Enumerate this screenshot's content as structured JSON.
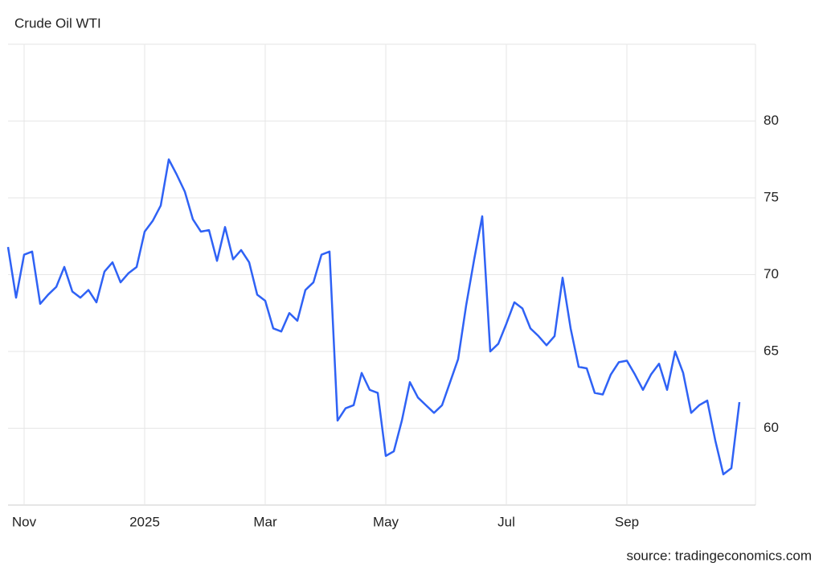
{
  "chart_data": {
    "type": "line",
    "title": "Crude Oil WTI",
    "source": "source: tradingeconomics.com",
    "categories": [
      null,
      null,
      "Nov",
      null,
      null,
      null,
      null,
      null,
      null,
      null,
      null,
      null,
      null,
      null,
      null,
      null,
      null,
      "2025",
      null,
      null,
      null,
      null,
      null,
      null,
      null,
      null,
      null,
      null,
      null,
      null,
      null,
      null,
      "Mar",
      null,
      null,
      null,
      null,
      null,
      null,
      null,
      null,
      null,
      null,
      null,
      null,
      null,
      null,
      "May",
      null,
      null,
      null,
      null,
      null,
      null,
      null,
      null,
      null,
      null,
      null,
      null,
      null,
      null,
      "Jul",
      null,
      null,
      null,
      null,
      null,
      null,
      null,
      null,
      null,
      null,
      null,
      null,
      null,
      null,
      "Sep",
      null,
      null,
      null,
      null,
      null,
      null,
      null,
      null,
      null,
      null,
      null,
      null,
      null,
      null
    ],
    "series": [
      {
        "name": "Crude Oil WTI",
        "color": "#2f62f5",
        "values": [
          71.8,
          68.5,
          71.3,
          71.5,
          68.1,
          68.7,
          69.2,
          70.5,
          68.9,
          68.5,
          69.0,
          68.2,
          70.2,
          70.8,
          69.5,
          70.1,
          70.5,
          72.8,
          73.5,
          74.5,
          77.5,
          76.5,
          75.4,
          73.6,
          72.8,
          72.9,
          70.9,
          73.1,
          71.0,
          71.6,
          70.8,
          68.7,
          68.3,
          66.5,
          66.3,
          67.5,
          67.0,
          69.0,
          69.5,
          71.3,
          71.5,
          60.5,
          61.3,
          61.5,
          63.6,
          62.5,
          62.3,
          58.2,
          58.5,
          60.5,
          63.0,
          62.0,
          61.5,
          61.0,
          61.5,
          63.0,
          64.5,
          68.0,
          71.0,
          73.8,
          65.0,
          65.5,
          66.8,
          68.2,
          67.8,
          66.5,
          66.0,
          65.4,
          66.0,
          69.8,
          66.5,
          64.0,
          63.9,
          62.3,
          62.2,
          63.5,
          64.3,
          64.4,
          63.5,
          62.5,
          63.5,
          64.2,
          62.5,
          65.0,
          63.6,
          61.0,
          61.5,
          61.8,
          59.2,
          57.0,
          57.4,
          61.7
        ]
      }
    ],
    "ylim": [
      55,
      85
    ],
    "yticks": [
      60,
      65,
      70,
      75,
      80
    ],
    "grid": true
  }
}
